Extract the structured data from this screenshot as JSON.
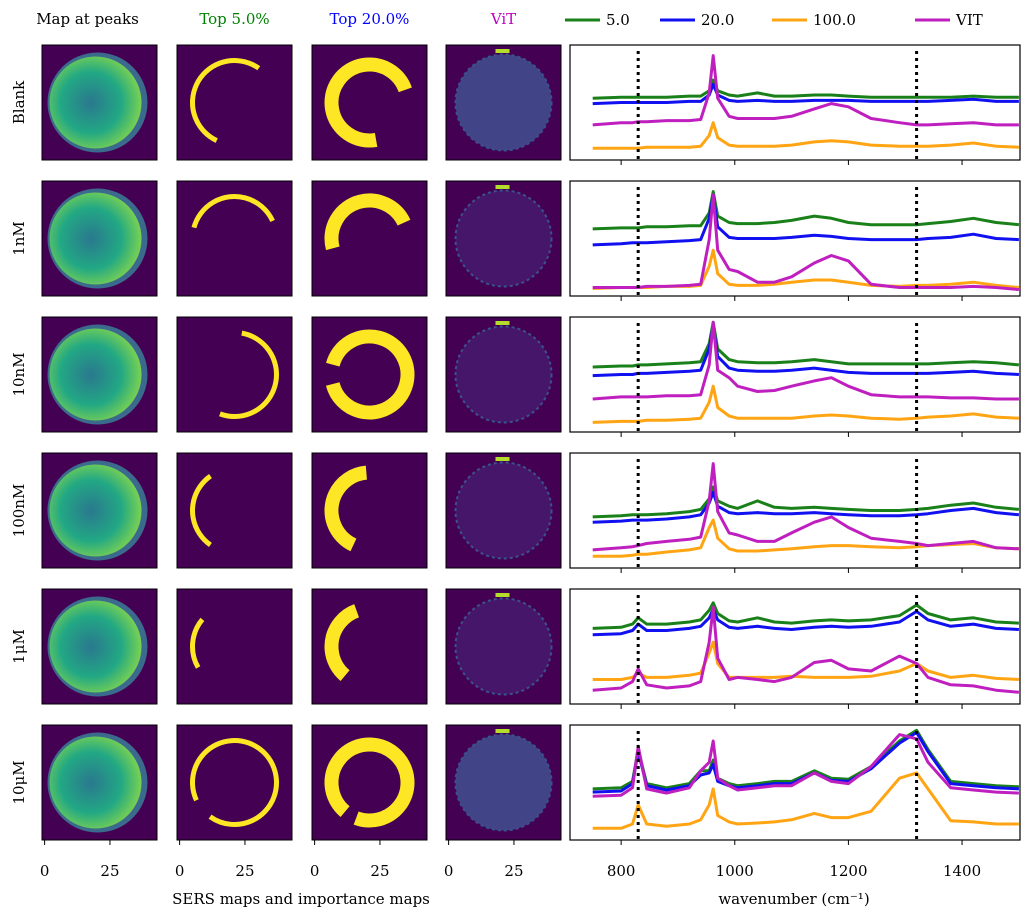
{
  "chart_data": {
    "type": "line",
    "panels": [
      "Blank",
      "1nM",
      "10nM",
      "100nM",
      "1μM",
      "10μM"
    ],
    "map_titles": [
      {
        "text": "Map at peaks",
        "color": "#000000"
      },
      {
        "text": "Top 5.0%",
        "color": "#008000"
      },
      {
        "text": "Top 20.0%",
        "color": "#0000ff"
      },
      {
        "text": "ViT",
        "color": "#bf00bf"
      }
    ],
    "map_xlim": [
      -1,
      43
    ],
    "map_xticks": [
      0,
      25
    ],
    "map_xlabel": "SERS maps and importance maps",
    "xlabel": "wavenumber (cm⁻¹)",
    "xlim": [
      710,
      1502
    ],
    "xticks": [
      800,
      1000,
      1200,
      1400
    ],
    "ylim": [
      -0.03,
      1.05
    ],
    "vlines": [
      830,
      1320
    ],
    "x": [
      750,
      800,
      820,
      830,
      845,
      880,
      920,
      940,
      955,
      962,
      970,
      990,
      1005,
      1040,
      1070,
      1100,
      1140,
      1170,
      1200,
      1240,
      1290,
      1320,
      1340,
      1380,
      1420,
      1460,
      1500
    ],
    "series": [
      {
        "name": "5.0",
        "color": "#1a801a",
        "values": [
          [
            0.55,
            0.56,
            0.56,
            0.56,
            0.56,
            0.56,
            0.57,
            0.57,
            0.62,
            0.72,
            0.62,
            0.58,
            0.57,
            0.6,
            0.57,
            0.57,
            0.58,
            0.58,
            0.57,
            0.56,
            0.56,
            0.56,
            0.56,
            0.56,
            0.57,
            0.56,
            0.56
          ],
          [
            0.6,
            0.61,
            0.61,
            0.61,
            0.62,
            0.62,
            0.63,
            0.63,
            0.75,
            0.95,
            0.72,
            0.66,
            0.65,
            0.65,
            0.66,
            0.68,
            0.72,
            0.7,
            0.66,
            0.64,
            0.64,
            0.64,
            0.65,
            0.67,
            0.7,
            0.66,
            0.64
          ],
          [
            0.58,
            0.59,
            0.59,
            0.6,
            0.6,
            0.61,
            0.62,
            0.63,
            0.8,
            1.0,
            0.75,
            0.65,
            0.63,
            0.62,
            0.62,
            0.63,
            0.65,
            0.63,
            0.61,
            0.61,
            0.61,
            0.61,
            0.61,
            0.62,
            0.63,
            0.62,
            0.6
          ],
          [
            0.45,
            0.46,
            0.47,
            0.47,
            0.47,
            0.48,
            0.5,
            0.52,
            0.62,
            0.73,
            0.6,
            0.55,
            0.53,
            0.6,
            0.54,
            0.53,
            0.54,
            0.53,
            0.52,
            0.51,
            0.51,
            0.52,
            0.53,
            0.56,
            0.58,
            0.54,
            0.52
          ],
          [
            0.68,
            0.69,
            0.72,
            0.78,
            0.72,
            0.72,
            0.74,
            0.76,
            0.85,
            0.92,
            0.82,
            0.75,
            0.74,
            0.78,
            0.74,
            0.73,
            0.75,
            0.76,
            0.75,
            0.76,
            0.8,
            0.9,
            0.82,
            0.76,
            0.78,
            0.74,
            0.73
          ],
          [
            0.45,
            0.46,
            0.52,
            0.82,
            0.5,
            0.46,
            0.5,
            0.62,
            0.62,
            0.72,
            0.55,
            0.5,
            0.48,
            0.5,
            0.52,
            0.52,
            0.62,
            0.55,
            0.54,
            0.66,
            0.9,
            1.0,
            0.82,
            0.52,
            0.5,
            0.48,
            0.47
          ]
        ]
      },
      {
        "name": "20.0",
        "color": "#1010f0",
        "values": [
          [
            0.5,
            0.51,
            0.51,
            0.51,
            0.51,
            0.51,
            0.52,
            0.52,
            0.58,
            0.68,
            0.58,
            0.53,
            0.52,
            0.53,
            0.52,
            0.52,
            0.53,
            0.53,
            0.53,
            0.52,
            0.52,
            0.52,
            0.52,
            0.53,
            0.54,
            0.52,
            0.52
          ],
          [
            0.45,
            0.46,
            0.47,
            0.47,
            0.47,
            0.48,
            0.49,
            0.5,
            0.7,
            0.92,
            0.62,
            0.52,
            0.51,
            0.51,
            0.51,
            0.52,
            0.54,
            0.53,
            0.51,
            0.5,
            0.5,
            0.5,
            0.51,
            0.52,
            0.55,
            0.51,
            0.5
          ],
          [
            0.5,
            0.51,
            0.51,
            0.52,
            0.52,
            0.53,
            0.54,
            0.55,
            0.75,
            0.97,
            0.68,
            0.57,
            0.55,
            0.54,
            0.54,
            0.55,
            0.57,
            0.55,
            0.53,
            0.52,
            0.52,
            0.52,
            0.52,
            0.53,
            0.54,
            0.52,
            0.51
          ],
          [
            0.4,
            0.41,
            0.42,
            0.42,
            0.42,
            0.43,
            0.45,
            0.47,
            0.58,
            0.68,
            0.55,
            0.49,
            0.48,
            0.49,
            0.48,
            0.48,
            0.49,
            0.48,
            0.47,
            0.46,
            0.46,
            0.47,
            0.48,
            0.51,
            0.53,
            0.49,
            0.47
          ],
          [
            0.62,
            0.63,
            0.66,
            0.72,
            0.66,
            0.66,
            0.68,
            0.7,
            0.78,
            0.86,
            0.76,
            0.69,
            0.68,
            0.7,
            0.68,
            0.67,
            0.69,
            0.7,
            0.69,
            0.7,
            0.74,
            0.84,
            0.76,
            0.7,
            0.72,
            0.68,
            0.67
          ],
          [
            0.42,
            0.43,
            0.5,
            0.8,
            0.48,
            0.44,
            0.48,
            0.58,
            0.6,
            0.68,
            0.52,
            0.48,
            0.46,
            0.48,
            0.5,
            0.5,
            0.6,
            0.53,
            0.52,
            0.64,
            0.88,
            0.98,
            0.8,
            0.5,
            0.48,
            0.46,
            0.45
          ]
        ]
      },
      {
        "name": "100.0",
        "color": "#ffa514",
        "values": [
          [
            0.08,
            0.08,
            0.08,
            0.08,
            0.09,
            0.09,
            0.09,
            0.1,
            0.2,
            0.32,
            0.18,
            0.11,
            0.1,
            0.1,
            0.1,
            0.11,
            0.14,
            0.15,
            0.14,
            0.11,
            0.1,
            0.1,
            0.1,
            0.11,
            0.13,
            0.1,
            0.09
          ],
          [
            0.04,
            0.05,
            0.05,
            0.05,
            0.05,
            0.06,
            0.06,
            0.07,
            0.25,
            0.4,
            0.18,
            0.08,
            0.07,
            0.07,
            0.08,
            0.1,
            0.12,
            0.12,
            0.1,
            0.07,
            0.06,
            0.07,
            0.07,
            0.08,
            0.1,
            0.07,
            0.05
          ],
          [
            0.06,
            0.07,
            0.07,
            0.07,
            0.08,
            0.08,
            0.09,
            0.1,
            0.25,
            0.4,
            0.2,
            0.12,
            0.1,
            0.1,
            0.1,
            0.1,
            0.12,
            0.13,
            0.12,
            0.1,
            0.09,
            0.1,
            0.11,
            0.12,
            0.14,
            0.11,
            0.1
          ],
          [
            0.08,
            0.08,
            0.09,
            0.1,
            0.1,
            0.12,
            0.14,
            0.16,
            0.35,
            0.42,
            0.25,
            0.15,
            0.13,
            0.13,
            0.14,
            0.15,
            0.17,
            0.18,
            0.18,
            0.17,
            0.16,
            0.17,
            0.18,
            0.19,
            0.2,
            0.16,
            0.15
          ],
          [
            0.2,
            0.2,
            0.22,
            0.26,
            0.22,
            0.22,
            0.24,
            0.26,
            0.45,
            0.55,
            0.35,
            0.22,
            0.22,
            0.22,
            0.22,
            0.23,
            0.22,
            0.22,
            0.22,
            0.23,
            0.28,
            0.35,
            0.28,
            0.22,
            0.24,
            0.21,
            0.2
          ],
          [
            0.08,
            0.08,
            0.12,
            0.3,
            0.12,
            0.1,
            0.12,
            0.16,
            0.3,
            0.45,
            0.2,
            0.14,
            0.12,
            0.13,
            0.14,
            0.16,
            0.22,
            0.18,
            0.18,
            0.24,
            0.55,
            0.6,
            0.45,
            0.15,
            0.14,
            0.12,
            0.12
          ]
        ]
      },
      {
        "name": "VIT",
        "color": "#bf1fbf",
        "values": [
          [
            0.3,
            0.32,
            0.32,
            0.33,
            0.33,
            0.34,
            0.34,
            0.35,
            0.6,
            0.95,
            0.55,
            0.38,
            0.36,
            0.36,
            0.36,
            0.38,
            0.45,
            0.5,
            0.47,
            0.36,
            0.32,
            0.3,
            0.3,
            0.31,
            0.32,
            0.3,
            0.3
          ],
          [
            0.05,
            0.05,
            0.05,
            0.05,
            0.06,
            0.06,
            0.07,
            0.08,
            0.5,
            0.92,
            0.4,
            0.22,
            0.2,
            0.1,
            0.1,
            0.15,
            0.28,
            0.35,
            0.3,
            0.08,
            0.05,
            0.05,
            0.05,
            0.05,
            0.06,
            0.05,
            0.03
          ],
          [
            0.28,
            0.3,
            0.3,
            0.3,
            0.3,
            0.31,
            0.31,
            0.32,
            0.6,
            1.0,
            0.55,
            0.48,
            0.4,
            0.35,
            0.36,
            0.4,
            0.45,
            0.48,
            0.4,
            0.32,
            0.3,
            0.3,
            0.3,
            0.29,
            0.29,
            0.28,
            0.28
          ],
          [
            0.14,
            0.16,
            0.17,
            0.18,
            0.2,
            0.22,
            0.24,
            0.26,
            0.6,
            0.95,
            0.5,
            0.3,
            0.28,
            0.22,
            0.22,
            0.3,
            0.4,
            0.45,
            0.35,
            0.25,
            0.22,
            0.2,
            0.18,
            0.2,
            0.22,
            0.16,
            0.15
          ],
          [
            0.1,
            0.12,
            0.18,
            0.3,
            0.15,
            0.12,
            0.14,
            0.18,
            0.55,
            0.88,
            0.4,
            0.2,
            0.22,
            0.2,
            0.18,
            0.22,
            0.36,
            0.38,
            0.3,
            0.28,
            0.42,
            0.35,
            0.22,
            0.15,
            0.14,
            0.1,
            0.08
          ],
          [
            0.38,
            0.39,
            0.46,
            0.85,
            0.45,
            0.41,
            0.46,
            0.62,
            0.7,
            0.9,
            0.55,
            0.48,
            0.44,
            0.46,
            0.48,
            0.48,
            0.6,
            0.52,
            0.5,
            0.66,
            0.96,
            0.92,
            0.7,
            0.46,
            0.44,
            0.42,
            0.41
          ]
        ]
      }
    ]
  }
}
